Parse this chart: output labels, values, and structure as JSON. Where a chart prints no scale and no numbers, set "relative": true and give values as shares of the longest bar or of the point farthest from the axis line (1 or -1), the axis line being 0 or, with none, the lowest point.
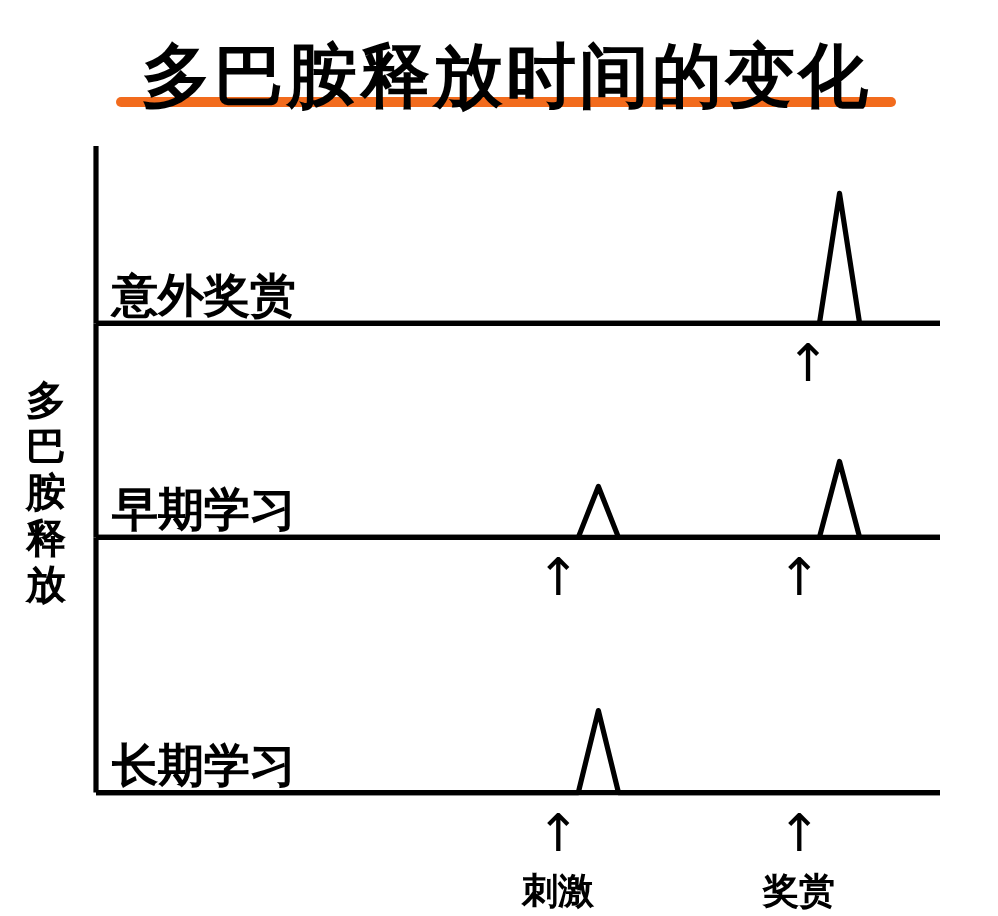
{
  "chart_data": [
    {
      "type": "line",
      "title": "多巴胺释放时间的变化",
      "categories": [
        null,
        null,
        null,
        null,
        null,
        null,
        null,
        null,
        null,
        null,
        null,
        null,
        null,
        null,
        null,
        null,
        null,
        null,
        null,
        null,
        null,
        null,
        null,
        null,
        null,
        null,
        null,
        null,
        null,
        null,
        null,
        null,
        null,
        null,
        null,
        null,
        null,
        null,
        null,
        null,
        null,
        null,
        null
      ],
      "series": [
        {
          "name": "意外奖赏",
          "color": "#000000",
          "values": [
            0,
            0,
            0,
            0,
            0,
            0,
            0,
            0,
            0,
            0,
            0,
            0,
            0,
            0,
            0,
            0,
            0,
            0,
            0,
            0,
            0,
            0,
            0,
            0,
            0,
            0,
            0,
            0,
            0,
            0,
            0,
            0,
            0,
            0,
            0,
            0,
            0,
            1,
            0,
            0,
            0,
            0,
            0
          ]
        }
      ],
      "relative": true,
      "annotations": [
        "↑"
      ]
    },
    {
      "type": "line",
      "ylabel": "多巴胺释放",
      "categories": [
        null,
        null,
        null,
        null,
        null,
        null,
        null,
        null,
        null,
        null,
        null,
        null,
        null,
        null,
        null,
        null,
        null,
        null,
        null,
        null,
        null,
        null,
        null,
        "↑",
        null,
        null,
        null,
        null,
        null,
        null,
        null,
        null,
        null,
        null,
        null,
        "↑",
        null,
        null,
        null,
        null,
        null,
        null,
        null
      ],
      "series": [
        {
          "name": "早期学习",
          "color": "#000000",
          "values": [
            0,
            0,
            0,
            0,
            0,
            0,
            0,
            0,
            0,
            0,
            0,
            0,
            0,
            0,
            0,
            0,
            0,
            0,
            0,
            0,
            0,
            0,
            0,
            0,
            0,
            0.67,
            0,
            0,
            0,
            0,
            0,
            0,
            0,
            0,
            0,
            0,
            0,
            1,
            0,
            0,
            0,
            0,
            0
          ]
        }
      ],
      "relative": true
    },
    {
      "type": "line",
      "categories": [
        null,
        null,
        null,
        null,
        null,
        null,
        null,
        null,
        null,
        null,
        null,
        null,
        null,
        null,
        null,
        null,
        null,
        null,
        null,
        null,
        null,
        null,
        null,
        "↑\n刺激",
        null,
        null,
        null,
        null,
        null,
        null,
        null,
        null,
        null,
        null,
        null,
        "↑\n奖赏",
        null,
        null,
        null,
        null,
        null,
        null,
        null
      ],
      "series": [
        {
          "name": "长期学习",
          "color": "#000000",
          "values": [
            0,
            0,
            0,
            0,
            0,
            0,
            0,
            0,
            0,
            0,
            0,
            0,
            0,
            0,
            0,
            0,
            0,
            0,
            0,
            0,
            0,
            0,
            0,
            0,
            0,
            1,
            0,
            0,
            0,
            0,
            0,
            0,
            0,
            0,
            0,
            0,
            0,
            0,
            0,
            0,
            0,
            0,
            0
          ]
        }
      ],
      "relative": true
    }
  ]
}
